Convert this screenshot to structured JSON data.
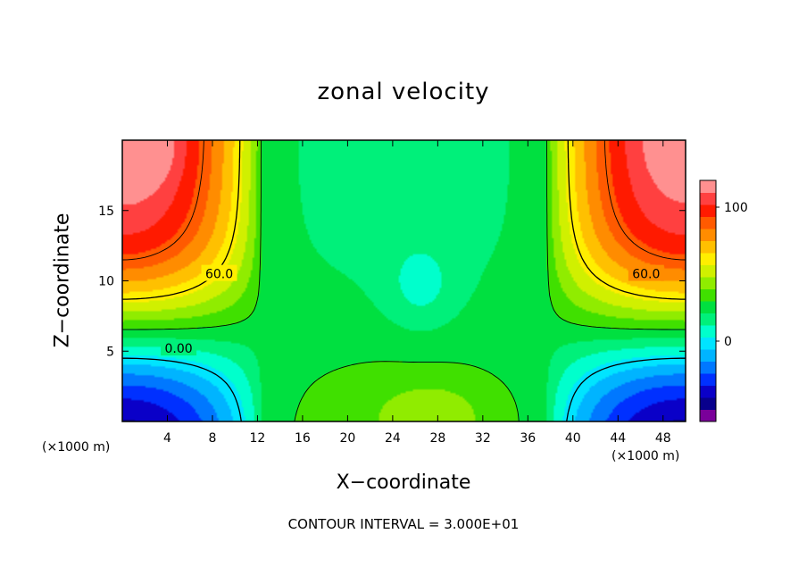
{
  "chart_data": {
    "type": "heatmap",
    "title": "zonal velocity",
    "xlabel": "X−coordinate",
    "ylabel": "Z−coordinate",
    "x_unit": "(×1000 m)",
    "x_unit_right": "(×1000 m)",
    "xlim": [
      0,
      50
    ],
    "ylim": [
      0,
      20
    ],
    "x_ticks": [
      4,
      8,
      12,
      16,
      20,
      24,
      28,
      32,
      36,
      40,
      44,
      48
    ],
    "y_ticks": [
      5,
      10,
      15
    ],
    "colorbar": {
      "min": -60,
      "max": 120,
      "ticks": [
        0,
        100
      ],
      "colors": [
        "#7a009a",
        "#08008c",
        "#0a00c8",
        "#0030ff",
        "#0078ff",
        "#00b4ff",
        "#00e4ff",
        "#00ffcc",
        "#00f07a",
        "#00e040",
        "#40e000",
        "#90ec00",
        "#d0f000",
        "#ffee00",
        "#ffc000",
        "#ff8c00",
        "#ff5a00",
        "#ff1a00",
        "#ff4040",
        "#ff9090"
      ]
    },
    "contour_interval": "CONTOUR INTERVAL = 3.000E+01",
    "contour_labels": [
      "60.0",
      "60.0",
      "0.00"
    ],
    "description_of_field": {
      "upper_corners": 110,
      "lower_corners": -50,
      "center": 25,
      "center_min_anomaly": 15,
      "bottom_center": 35
    }
  }
}
